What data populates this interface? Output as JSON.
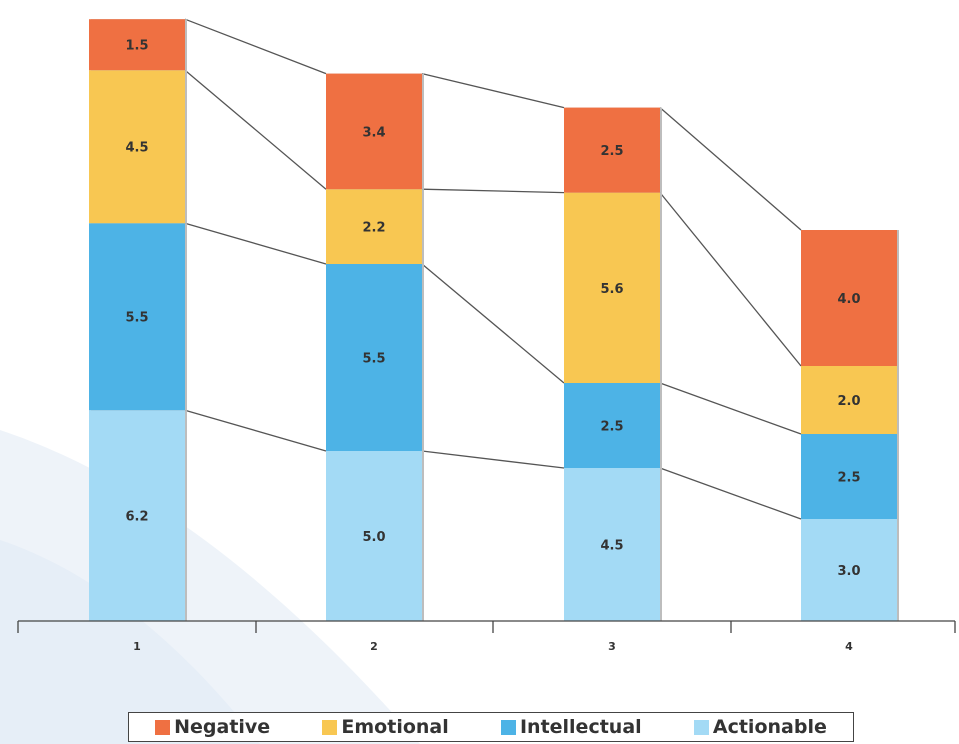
{
  "chart_data": {
    "type": "bar",
    "stacked": true,
    "categories": [
      "1",
      "2",
      "3",
      "4"
    ],
    "series": [
      {
        "name": "Actionable",
        "color": "#a3daf5",
        "values": [
          6.2,
          5.0,
          4.5,
          3.0
        ]
      },
      {
        "name": "Intellectual",
        "color": "#4db3e6",
        "values": [
          5.5,
          5.5,
          2.5,
          2.5
        ]
      },
      {
        "name": "Emotional",
        "color": "#f8c752",
        "values": [
          4.5,
          2.2,
          5.6,
          2.0
        ]
      },
      {
        "name": "Negative",
        "color": "#ef7042",
        "values": [
          1.5,
          3.4,
          2.5,
          4.0
        ]
      }
    ],
    "value_labels": [
      [
        "6.2",
        "5.0",
        "4.5",
        "3.0"
      ],
      [
        "5.5",
        "5.5",
        "2.5",
        "2.5"
      ],
      [
        "4.5",
        "2.2",
        "5.6",
        "2.0"
      ],
      [
        "1.5",
        "3.4",
        "2.5",
        "4.0"
      ]
    ],
    "title": "",
    "xlabel": "",
    "ylabel": "",
    "ylim": [
      0,
      18
    ],
    "grid": false,
    "connector_lines": true,
    "legend_position": "bottom",
    "legend_order": [
      "Negative",
      "Emotional",
      "Intellectual",
      "Actionable"
    ]
  }
}
